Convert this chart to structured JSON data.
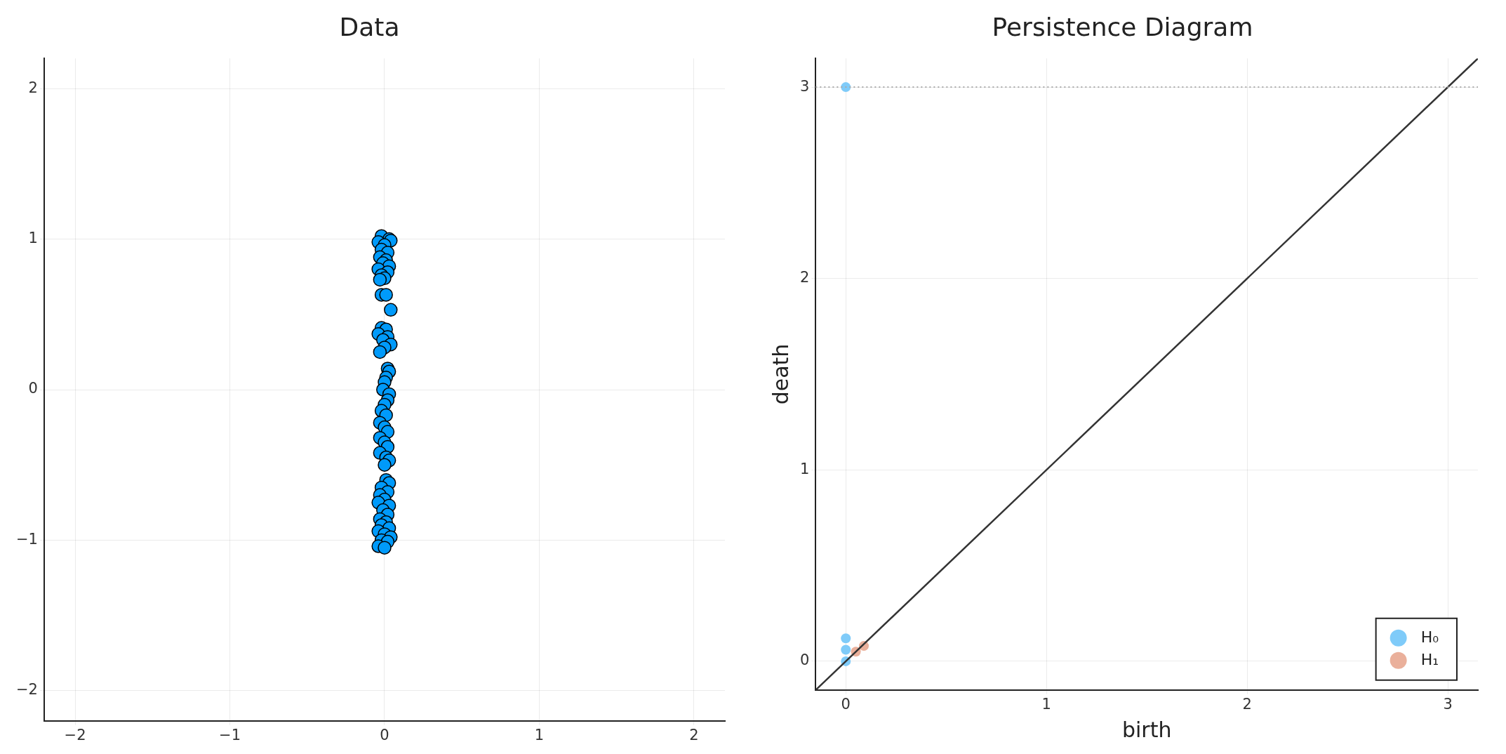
{
  "chart_data": [
    {
      "type": "scatter",
      "title": "Data",
      "xlim": [
        -2.2,
        2.2
      ],
      "ylim": [
        -2.2,
        2.2
      ],
      "xticks": [
        -2,
        -1,
        0,
        1,
        2
      ],
      "yticks": [
        -2,
        -1,
        0,
        1,
        2
      ],
      "grid": true,
      "marker": "circle",
      "series": [
        {
          "color": "#009afa",
          "x": [
            -0.02,
            0.03,
            0.04,
            -0.04,
            0.0,
            -0.02,
            0.02,
            -0.03,
            0.01,
            -0.01,
            0.03,
            -0.04,
            0.02,
            -0.02,
            0.0,
            -0.03,
            -0.02,
            0.01,
            0.04,
            -0.02,
            0.01,
            -0.04,
            0.02,
            -0.01,
            0.04,
            0.0,
            -0.03,
            0.02,
            0.03,
            0.01,
            0.0,
            -0.01,
            0.03,
            0.02,
            0.0,
            -0.02,
            0.01,
            -0.03,
            0.0,
            0.02,
            -0.03,
            0.0,
            0.02,
            -0.03,
            0.01,
            0.03,
            0.0,
            0.01,
            0.03,
            -0.02,
            0.02,
            -0.03,
            0.0,
            -0.04,
            0.03,
            -0.01,
            0.02,
            -0.03,
            0.01,
            -0.02,
            0.03,
            -0.04,
            0.0,
            0.04,
            -0.02,
            0.02,
            -0.04,
            0.0
          ],
          "values": [
            1.02,
            1.0,
            0.99,
            0.98,
            0.96,
            0.93,
            0.91,
            0.88,
            0.86,
            0.84,
            0.82,
            0.8,
            0.78,
            0.76,
            0.74,
            0.73,
            0.63,
            0.63,
            0.53,
            0.41,
            0.4,
            0.37,
            0.35,
            0.33,
            0.3,
            0.28,
            0.25,
            0.14,
            0.12,
            0.08,
            0.05,
            0.0,
            -0.03,
            -0.07,
            -0.1,
            -0.14,
            -0.17,
            -0.22,
            -0.25,
            -0.28,
            -0.32,
            -0.35,
            -0.38,
            -0.42,
            -0.45,
            -0.47,
            -0.5,
            -0.6,
            -0.62,
            -0.65,
            -0.68,
            -0.7,
            -0.73,
            -0.75,
            -0.77,
            -0.8,
            -0.83,
            -0.86,
            -0.88,
            -0.9,
            -0.92,
            -0.94,
            -0.96,
            -0.98,
            -1.0,
            -1.01,
            -1.04,
            -1.05
          ]
        }
      ]
    },
    {
      "type": "scatter",
      "title": "Persistence Diagram",
      "xlabel": "birth",
      "ylabel": "death",
      "xlim": [
        -0.15,
        3.15
      ],
      "ylim": [
        -0.15,
        3.15
      ],
      "xticks": [
        0,
        1,
        2,
        3
      ],
      "yticks": [
        0,
        1,
        2,
        3
      ],
      "grid": true,
      "marker": "circle",
      "legend": "bottom right",
      "series": [
        {
          "name": "H₀",
          "color": "#7fcbf9",
          "x": [
            0,
            0,
            0,
            0
          ],
          "values": [
            0.0,
            0.06,
            0.12,
            3.0
          ]
        },
        {
          "name": "H₁",
          "color": "#eab09b",
          "x": [
            0.05,
            0.09
          ],
          "values": [
            0.05,
            0.08
          ]
        },
        {
          "type": "line",
          "marker": "none",
          "color": "#333333",
          "x": [
            -0.15,
            3.15
          ],
          "values": [
            -0.15,
            3.15
          ]
        }
      ],
      "ref_lines": [
        {
          "axis": "y",
          "value": 3,
          "line_style": "dotted",
          "color": "#aaaaaa"
        }
      ]
    }
  ]
}
